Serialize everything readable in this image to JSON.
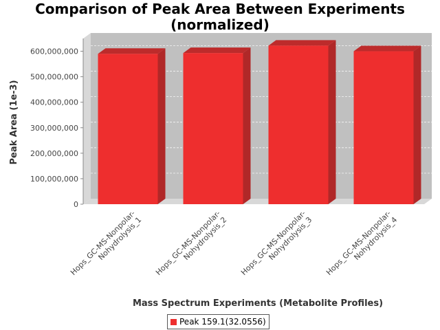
{
  "chart_data": {
    "type": "bar",
    "title_line1": "Comparison of Peak Area Between Experiments",
    "title_line2": "(normalized)",
    "xlabel": "Mass Spectrum Experiments (Metabolite Profiles)",
    "ylabel": "Peak Area (1e-3)",
    "categories": [
      [
        "Hops_GC-MS-Nonpolar-",
        "Nohydrolysis_1"
      ],
      [
        "Hops_GC-MS-Nonpolar-",
        "Nohydrolysis_2"
      ],
      [
        "Hops_GC-MS-Nonpolar-",
        "Nohydrolysis_3"
      ],
      [
        "Hops_GC-MS-Nonpolar-",
        "Nohydrolysis_4"
      ]
    ],
    "series": [
      {
        "name": "Peak 159.1(32.0556)",
        "values": [
          590000000,
          593000000,
          622000000,
          600000000
        ]
      }
    ],
    "ylim": [
      0,
      650000000
    ],
    "yticks": [
      0,
      100000000,
      200000000,
      300000000,
      400000000,
      500000000,
      600000000
    ],
    "ytick_labels": [
      "0",
      "100,000,000",
      "200,000,000",
      "300,000,000",
      "400,000,000",
      "500,000,000",
      "600,000,000"
    ],
    "grid": true,
    "legend_position": "bottom-center",
    "colors": {
      "bar_front": "#ee2e2e",
      "bar_side": "#b02828",
      "bar_top": "#bd2b2b",
      "plot_bg": "#c0c0c0",
      "plot_wall": "#d8d8d8"
    }
  }
}
